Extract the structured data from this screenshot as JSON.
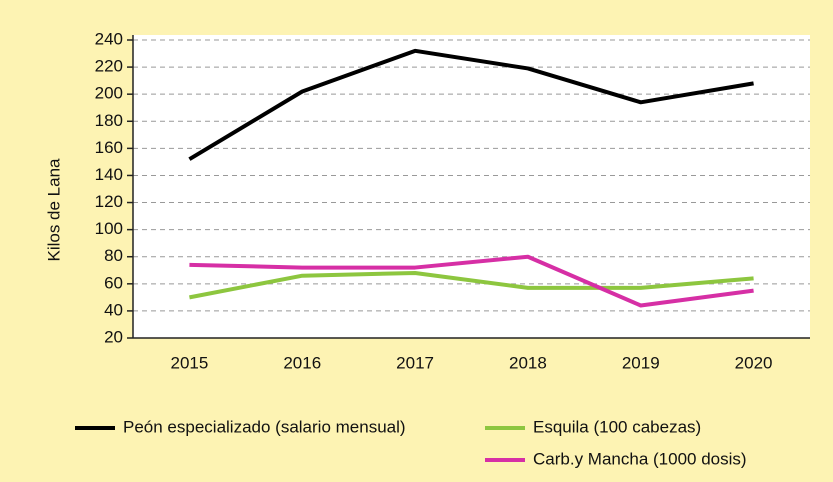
{
  "chart_data": {
    "type": "line",
    "y_label": "Kilos de Lana",
    "categories": [
      "2015",
      "2016",
      "2017",
      "2018",
      "2019",
      "2020"
    ],
    "series": [
      {
        "name": "Peón especializado (salario mensual)",
        "color": "#000000",
        "values": [
          152,
          202,
          232,
          219,
          194,
          208
        ]
      },
      {
        "name": "Esquila (100 cabezas)",
        "color": "#8dc63f",
        "values": [
          50,
          66,
          68,
          57,
          57,
          64
        ]
      },
      {
        "name": "Carb.y Mancha (1000 dosis)",
        "color": "#d62fa5",
        "values": [
          74,
          72,
          72,
          80,
          44,
          55
        ]
      }
    ],
    "ylim": [
      20,
      240
    ],
    "yticks": [
      20,
      40,
      60,
      80,
      100,
      120,
      140,
      160,
      180,
      200,
      220,
      240
    ],
    "grid": true,
    "legend": "bottom"
  }
}
